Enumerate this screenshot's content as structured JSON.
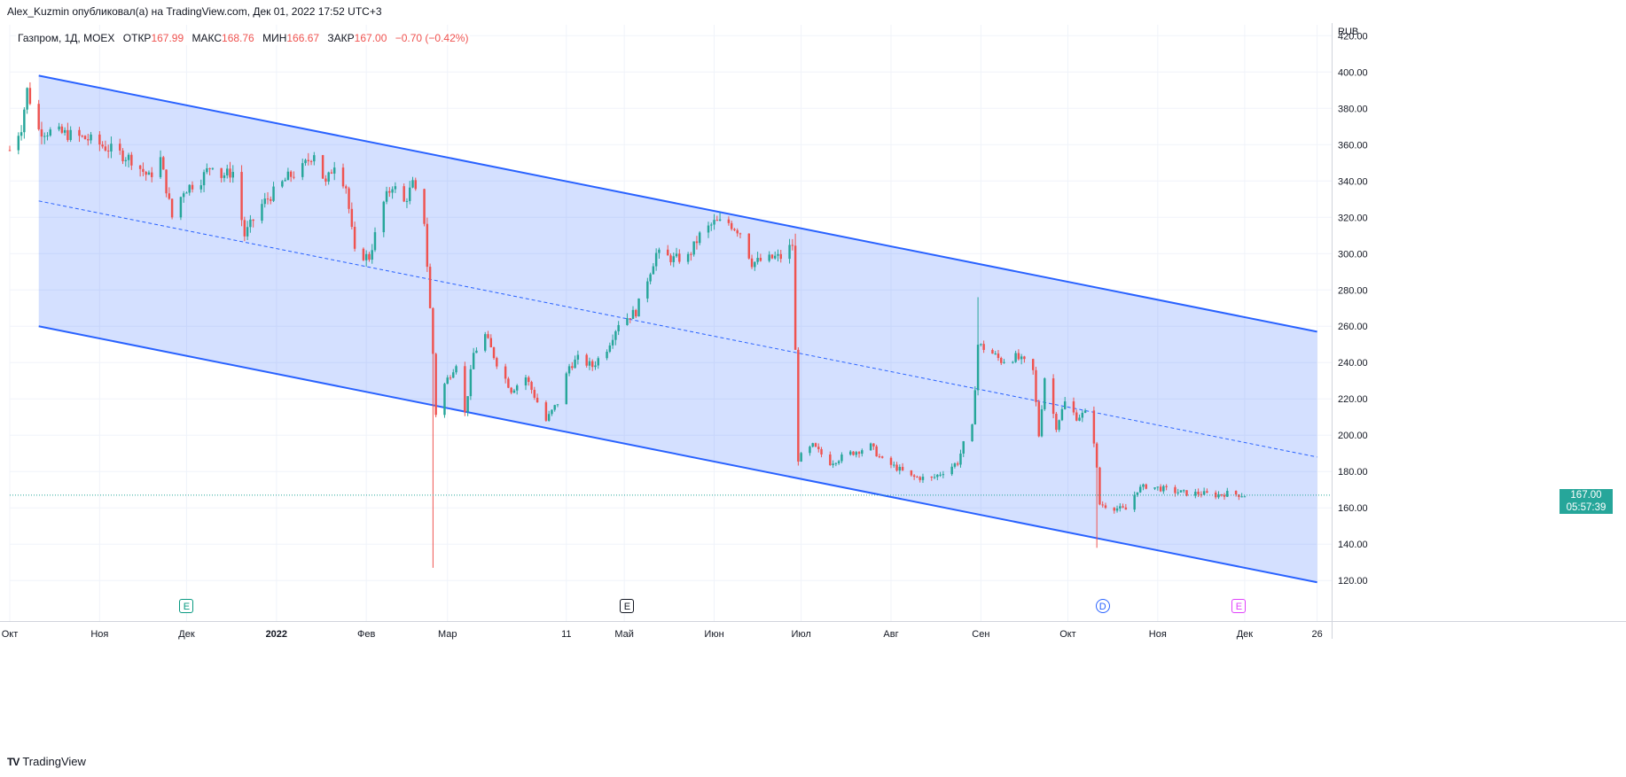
{
  "header": {
    "publisher_line": "Alex_Kuzmin опубликовал(а) на TradingView.com, Дек 01, 2022 17:52 UTC+3"
  },
  "legend": {
    "symbol": "Газпром, 1Д, MOEX",
    "open_label": "ОТКР",
    "open": "167.99",
    "high_label": "МАКС",
    "high": "168.76",
    "low_label": "МИН",
    "low": "166.67",
    "close_label": "ЗАКР",
    "close": "167.00",
    "change": "−0.70 (−0.42%)"
  },
  "price_tag": {
    "price": "167.00",
    "countdown": "05:57:39"
  },
  "footer": {
    "logo": "TV",
    "brand": "TradingView"
  },
  "events": [
    {
      "letter": "E",
      "date": "2021-12-01",
      "color": "#089981",
      "shape": "square"
    },
    {
      "letter": "E",
      "date": "2022-05-02",
      "color": "#131722",
      "shape": "square"
    },
    {
      "letter": "D",
      "date": "2022-10-13",
      "color": "#2962ff",
      "shape": "circle"
    },
    {
      "letter": "E",
      "date": "2022-11-29",
      "color": "#e040fb",
      "shape": "square"
    }
  ],
  "colors": {
    "up": "#26a69a",
    "down": "#ef5350",
    "channel_line": "#2962ff",
    "channel_fill": "#2962ff",
    "grid": "#f0f3fa",
    "axis_text": "#131722"
  },
  "chart_data": {
    "type": "candlestick",
    "symbol": "Газпром",
    "interval": "1Д",
    "exchange": "MOEX",
    "currency": "RUB",
    "y_ticks": [
      120,
      140,
      160,
      180,
      200,
      220,
      240,
      260,
      280,
      300,
      320,
      340,
      360,
      380,
      400,
      420
    ],
    "ylim": [
      104,
      426
    ],
    "x_range": [
      "2021-10-01",
      "2022-12-31"
    ],
    "x_ticks": [
      {
        "label": "Окт",
        "date": "2021-10-01"
      },
      {
        "label": "Ноя",
        "date": "2021-11-01"
      },
      {
        "label": "Дек",
        "date": "2021-12-01"
      },
      {
        "label": "2022",
        "date": "2022-01-01"
      },
      {
        "label": "Фев",
        "date": "2022-02-01"
      },
      {
        "label": "Мар",
        "date": "2022-03-01"
      },
      {
        "label": "11",
        "date": "2022-04-11"
      },
      {
        "label": "Май",
        "date": "2022-05-01"
      },
      {
        "label": "Июн",
        "date": "2022-06-01"
      },
      {
        "label": "Июл",
        "date": "2022-07-01"
      },
      {
        "label": "Авг",
        "date": "2022-08-01"
      },
      {
        "label": "Сен",
        "date": "2022-09-01"
      },
      {
        "label": "Окт",
        "date": "2022-10-01"
      },
      {
        "label": "Ноя",
        "date": "2022-11-01"
      },
      {
        "label": "Дек",
        "date": "2022-12-01"
      },
      {
        "label": "26",
        "date": "2022-12-26"
      }
    ],
    "last_price": 167.0,
    "grid": true,
    "price_path": [
      [
        "2021-10-01",
        357
      ],
      [
        "2021-10-05",
        370
      ],
      [
        "2021-10-07",
        390
      ],
      [
        "2021-10-11",
        368
      ],
      [
        "2021-10-20",
        366
      ],
      [
        "2021-10-28",
        363
      ],
      [
        "2021-11-08",
        355
      ],
      [
        "2021-11-12",
        352
      ],
      [
        "2021-11-18",
        342
      ],
      [
        "2021-11-22",
        352
      ],
      [
        "2021-11-26",
        320
      ],
      [
        "2021-11-30",
        335
      ],
      [
        "2021-12-06",
        341
      ],
      [
        "2021-12-10",
        350
      ],
      [
        "2021-12-13",
        343
      ],
      [
        "2021-12-17",
        345
      ],
      [
        "2021-12-21",
        310
      ],
      [
        "2021-12-27",
        327
      ],
      [
        "2021-12-30",
        332
      ],
      [
        "2022-01-05",
        342
      ],
      [
        "2022-01-10",
        347
      ],
      [
        "2022-01-14",
        356
      ],
      [
        "2022-01-18",
        338
      ],
      [
        "2022-01-21",
        350
      ],
      [
        "2022-01-25",
        337
      ],
      [
        "2022-01-28",
        300
      ],
      [
        "2022-02-02",
        298
      ],
      [
        "2022-02-07",
        328
      ],
      [
        "2022-02-10",
        338
      ],
      [
        "2022-02-14",
        328
      ],
      [
        "2022-02-17",
        338
      ],
      [
        "2022-02-21",
        318
      ],
      [
        "2022-02-24",
        245
      ],
      [
        "2022-02-25",
        212
      ],
      [
        "2022-02-28",
        228
      ],
      [
        "2022-03-04",
        240
      ],
      [
        "2022-03-07",
        212
      ],
      [
        "2022-03-10",
        245
      ],
      [
        "2022-03-14",
        255
      ],
      [
        "2022-03-18",
        240
      ],
      [
        "2022-03-23",
        225
      ],
      [
        "2022-03-28",
        232
      ],
      [
        "2022-04-04",
        208
      ],
      [
        "2022-04-08",
        218
      ],
      [
        "2022-04-12",
        238
      ],
      [
        "2022-04-15",
        242
      ],
      [
        "2022-04-20",
        238
      ],
      [
        "2022-04-25",
        248
      ],
      [
        "2022-04-29",
        262
      ],
      [
        "2022-05-05",
        268
      ],
      [
        "2022-05-12",
        300
      ],
      [
        "2022-05-18",
        297
      ],
      [
        "2022-05-23",
        298
      ],
      [
        "2022-05-27",
        310
      ],
      [
        "2022-06-01",
        317
      ],
      [
        "2022-06-06",
        317
      ],
      [
        "2022-06-10",
        312
      ],
      [
        "2022-06-14",
        295
      ],
      [
        "2022-06-20",
        297
      ],
      [
        "2022-06-22",
        298
      ],
      [
        "2022-06-24",
        298
      ],
      [
        "2022-06-28",
        305
      ],
      [
        "2022-06-30",
        187
      ],
      [
        "2022-07-05",
        194
      ],
      [
        "2022-07-11",
        185
      ],
      [
        "2022-07-18",
        190
      ],
      [
        "2022-07-25",
        194
      ],
      [
        "2022-07-29",
        186
      ],
      [
        "2022-08-03",
        182
      ],
      [
        "2022-08-08",
        177
      ],
      [
        "2022-08-15",
        176
      ],
      [
        "2022-08-19",
        180
      ],
      [
        "2022-08-24",
        185
      ],
      [
        "2022-08-26",
        195
      ],
      [
        "2022-08-29",
        204
      ],
      [
        "2022-08-31",
        250
      ],
      [
        "2022-09-05",
        245
      ],
      [
        "2022-09-08",
        241
      ],
      [
        "2022-09-13",
        243
      ],
      [
        "2022-09-16",
        240
      ],
      [
        "2022-09-19",
        235
      ],
      [
        "2022-09-21",
        200
      ],
      [
        "2022-09-23",
        232
      ],
      [
        "2022-09-27",
        205
      ],
      [
        "2022-09-30",
        218
      ],
      [
        "2022-10-04",
        210
      ],
      [
        "2022-10-07",
        212
      ],
      [
        "2022-10-10",
        197
      ],
      [
        "2022-10-11",
        181
      ],
      [
        "2022-10-12",
        162
      ],
      [
        "2022-10-17",
        160
      ],
      [
        "2022-10-21",
        159
      ],
      [
        "2022-10-25",
        170
      ],
      [
        "2022-10-28",
        172
      ],
      [
        "2022-11-01",
        171
      ],
      [
        "2022-11-07",
        169
      ],
      [
        "2022-11-11",
        168
      ],
      [
        "2022-11-16",
        168
      ],
      [
        "2022-11-21",
        167
      ],
      [
        "2022-11-25",
        168
      ],
      [
        "2022-12-01",
        167
      ]
    ],
    "annotations": {
      "channel_upper": [
        [
          "2021-10-11",
          398
        ],
        [
          "2022-12-26",
          257
        ]
      ],
      "channel_mid": [
        [
          "2021-10-11",
          329
        ],
        [
          "2022-12-26",
          188
        ]
      ],
      "channel_lower": [
        [
          "2021-10-11",
          260
        ],
        [
          "2022-12-26",
          119
        ]
      ]
    }
  }
}
